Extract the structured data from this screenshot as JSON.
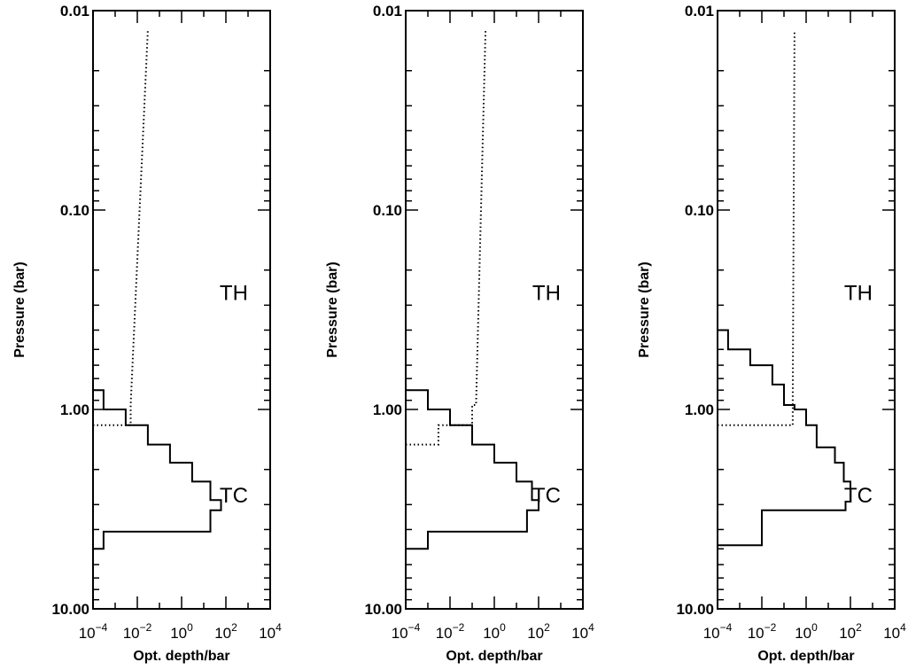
{
  "chart_data": [
    {
      "type": "line",
      "xlabel": "Opt. depth/bar",
      "ylabel": "Pressure (bar)",
      "xscale": "log",
      "yscale": "log",
      "y_inverted": true,
      "xlim": [
        0.0001,
        10000
      ],
      "ylim": [
        0.01,
        10
      ],
      "xticks": [
        {
          "v": 0.0001,
          "b": "10",
          "e": "−4"
        },
        {
          "v": 0.01,
          "b": "10",
          "e": "−2"
        },
        {
          "v": 1,
          "b": "10",
          "e": "0"
        },
        {
          "v": 100,
          "b": "10",
          "e": "2"
        },
        {
          "v": 10000,
          "b": "10",
          "e": "4"
        }
      ],
      "yticks": [
        {
          "v": 0.01,
          "label": "0.01"
        },
        {
          "v": 0.1,
          "label": "0.10"
        },
        {
          "v": 1,
          "label": "1.00"
        },
        {
          "v": 10,
          "label": "10.00"
        }
      ],
      "annotations": [
        {
          "text": "TH",
          "x": 3000,
          "y": 0.26
        },
        {
          "text": "TC",
          "x": 3000,
          "y": 2.7
        }
      ],
      "series": [
        {
          "style": "solid",
          "points": [
            [
              0.0001,
              0.8
            ],
            [
              0.0003,
              0.8
            ],
            [
              0.0003,
              1.0
            ],
            [
              0.003,
              1.0
            ],
            [
              0.003,
              1.2
            ],
            [
              0.03,
              1.2
            ],
            [
              0.03,
              1.5
            ],
            [
              0.3,
              1.5
            ],
            [
              0.3,
              1.85
            ],
            [
              3,
              1.85
            ],
            [
              3,
              2.3
            ],
            [
              20,
              2.3
            ],
            [
              20,
              2.85
            ],
            [
              60,
              2.85
            ],
            [
              60,
              3.2
            ],
            [
              20,
              3.2
            ],
            [
              20,
              4.1
            ],
            [
              0.0003,
              4.1
            ],
            [
              0.0003,
              5.0
            ],
            [
              0.0001,
              5.0
            ]
          ]
        },
        {
          "style": "dotted",
          "points": [
            [
              0.0001,
              1.2
            ],
            [
              0.005,
              1.2
            ],
            [
              0.005,
              0.95
            ],
            [
              0.03,
              0.0125
            ]
          ]
        }
      ]
    },
    {
      "type": "line",
      "xlabel": "Opt. depth/bar",
      "ylabel": "Pressure (bar)",
      "xscale": "log",
      "yscale": "log",
      "y_inverted": true,
      "xlim": [
        0.0001,
        10000
      ],
      "ylim": [
        0.01,
        10
      ],
      "xticks": [
        {
          "v": 0.0001,
          "b": "10",
          "e": "−4"
        },
        {
          "v": 0.01,
          "b": "10",
          "e": "−2"
        },
        {
          "v": 1,
          "b": "10",
          "e": "0"
        },
        {
          "v": 100,
          "b": "10",
          "e": "2"
        },
        {
          "v": 10000,
          "b": "10",
          "e": "4"
        }
      ],
      "yticks": [
        {
          "v": 0.01,
          "label": "0.01"
        },
        {
          "v": 0.1,
          "label": "0.10"
        },
        {
          "v": 1,
          "label": "1.00"
        },
        {
          "v": 10,
          "label": "10.00"
        }
      ],
      "annotations": [
        {
          "text": "TH",
          "x": 3000,
          "y": 0.26
        },
        {
          "text": "TC",
          "x": 3000,
          "y": 2.7
        }
      ],
      "series": [
        {
          "style": "solid",
          "points": [
            [
              0.0001,
              0.8
            ],
            [
              0.001,
              0.8
            ],
            [
              0.001,
              1.0
            ],
            [
              0.01,
              1.0
            ],
            [
              0.01,
              1.2
            ],
            [
              0.1,
              1.2
            ],
            [
              0.1,
              1.5
            ],
            [
              1,
              1.5
            ],
            [
              1,
              1.85
            ],
            [
              10,
              1.85
            ],
            [
              10,
              2.3
            ],
            [
              50,
              2.3
            ],
            [
              50,
              2.85
            ],
            [
              100,
              2.85
            ],
            [
              100,
              3.2
            ],
            [
              30,
              3.2
            ],
            [
              30,
              4.1
            ],
            [
              0.001,
              4.1
            ],
            [
              0.001,
              5.0
            ],
            [
              0.0001,
              5.0
            ]
          ]
        },
        {
          "style": "dotted",
          "points": [
            [
              0.0001,
              1.5
            ],
            [
              0.003,
              1.5
            ],
            [
              0.003,
              1.2
            ],
            [
              0.1,
              1.2
            ],
            [
              0.1,
              0.95
            ],
            [
              0.15,
              0.95
            ],
            [
              0.4,
              0.0125
            ]
          ]
        }
      ]
    },
    {
      "type": "line",
      "xlabel": "Opt. depth/bar",
      "ylabel": "Pressure (bar)",
      "xscale": "log",
      "yscale": "log",
      "y_inverted": true,
      "xlim": [
        0.0001,
        10000
      ],
      "ylim": [
        0.01,
        10
      ],
      "xticks": [
        {
          "v": 0.0001,
          "b": "10",
          "e": "−4"
        },
        {
          "v": 0.01,
          "b": "10",
          "e": "−2"
        },
        {
          "v": 1,
          "b": "10",
          "e": "0"
        },
        {
          "v": 100,
          "b": "10",
          "e": "2"
        },
        {
          "v": 10000,
          "b": "10",
          "e": "4"
        }
      ],
      "yticks": [
        {
          "v": 0.01,
          "label": "0.01"
        },
        {
          "v": 0.1,
          "label": "0.10"
        },
        {
          "v": 1,
          "label": "1.00"
        },
        {
          "v": 10,
          "label": "10.00"
        }
      ],
      "annotations": [
        {
          "text": "TH",
          "x": 3000,
          "y": 0.26
        },
        {
          "text": "TC",
          "x": 3000,
          "y": 2.7
        }
      ],
      "series": [
        {
          "style": "solid",
          "points": [
            [
              0.0001,
              0.4
            ],
            [
              0.0003,
              0.4
            ],
            [
              0.0003,
              0.5
            ],
            [
              0.003,
              0.5
            ],
            [
              0.003,
              0.6
            ],
            [
              0.03,
              0.6
            ],
            [
              0.03,
              0.75
            ],
            [
              0.1,
              0.75
            ],
            [
              0.1,
              0.95
            ],
            [
              0.3,
              0.95
            ],
            [
              0.3,
              1.0
            ],
            [
              1,
              1.0
            ],
            [
              1,
              1.2
            ],
            [
              3,
              1.2
            ],
            [
              3,
              1.55
            ],
            [
              20,
              1.55
            ],
            [
              20,
              1.85
            ],
            [
              50,
              1.85
            ],
            [
              50,
              2.3
            ],
            [
              100,
              2.3
            ],
            [
              100,
              2.9
            ],
            [
              60,
              2.9
            ],
            [
              60,
              3.2
            ],
            [
              0.01,
              3.2
            ],
            [
              0.01,
              4.8
            ],
            [
              0.0001,
              4.8
            ]
          ]
        },
        {
          "style": "dotted",
          "points": [
            [
              0.0001,
              1.2
            ],
            [
              0.25,
              1.2
            ],
            [
              0.25,
              0.9
            ],
            [
              0.3,
              0.0125
            ]
          ]
        }
      ]
    }
  ]
}
